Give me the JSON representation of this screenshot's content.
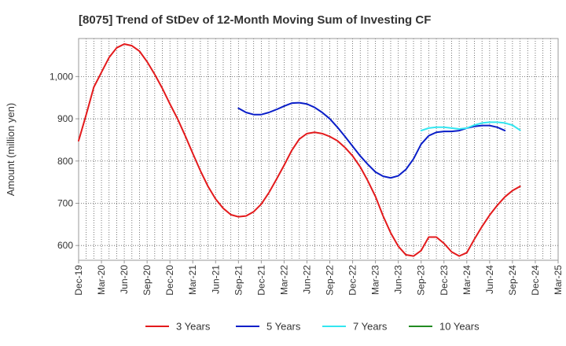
{
  "chart_data": {
    "type": "line",
    "title": "[8075]  Trend of StDev of 12-Month Moving Sum of Investing CF",
    "xlabel": "",
    "ylabel": "Amount (million yen)",
    "ylim": [
      565,
      1090
    ],
    "y_ticks": [
      600,
      700,
      800,
      900,
      1000
    ],
    "y_tick_labels": [
      "600",
      "700",
      "800",
      "900",
      "1,000"
    ],
    "x_tick_labels": [
      "Dec-19",
      "Mar-20",
      "Jun-20",
      "Sep-20",
      "Dec-20",
      "Mar-21",
      "Jun-21",
      "Sep-21",
      "Dec-21",
      "Mar-22",
      "Jun-22",
      "Sep-22",
      "Dec-22",
      "Mar-23",
      "Jun-23",
      "Sep-23",
      "Dec-23",
      "Mar-24",
      "Jun-24",
      "Sep-24",
      "Dec-24",
      "Mar-25"
    ],
    "grid": true,
    "legend_position": "bottom",
    "series": [
      {
        "name": "3 Years",
        "color": "#e31a1c",
        "start_month": 0,
        "values": [
          848,
          910,
          975,
          1010,
          1045,
          1068,
          1077,
          1073,
          1060,
          1035,
          1005,
          972,
          935,
          900,
          860,
          818,
          777,
          740,
          710,
          688,
          673,
          668,
          670,
          680,
          698,
          725,
          757,
          790,
          825,
          852,
          865,
          868,
          865,
          858,
          848,
          832,
          812,
          786,
          753,
          716,
          670,
          630,
          598,
          578,
          575,
          588,
          620,
          620,
          605,
          585,
          575,
          583,
          615,
          645,
          672,
          695,
          715,
          730,
          740
        ]
      },
      {
        "name": "5 Years",
        "color": "#0a1ec8",
        "start_month": 21,
        "values": [
          925,
          915,
          910,
          910,
          915,
          922,
          930,
          937,
          938,
          935,
          927,
          915,
          900,
          880,
          858,
          835,
          812,
          792,
          774,
          764,
          760,
          765,
          780,
          805,
          840,
          860,
          868,
          870,
          870,
          872,
          878,
          882,
          884,
          884,
          880,
          872
        ]
      },
      {
        "name": "7 Years",
        "color": "#33e6f0",
        "start_month": 45,
        "values": [
          872,
          878,
          880,
          880,
          878,
          876,
          878,
          885,
          890,
          892,
          892,
          890,
          885,
          873
        ]
      },
      {
        "name": "10 Years",
        "color": "#228b22",
        "start_month": 0,
        "values": []
      }
    ]
  }
}
